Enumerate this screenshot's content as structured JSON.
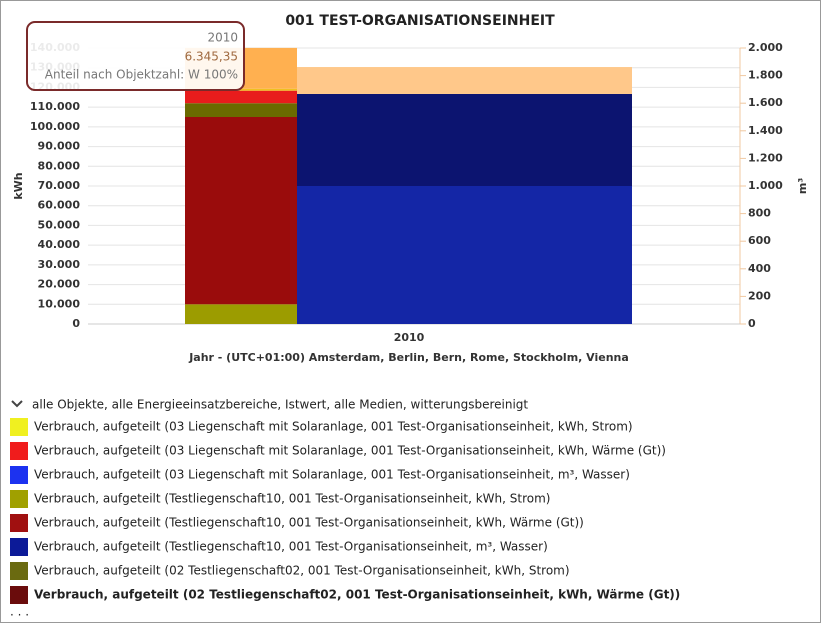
{
  "chart_data": {
    "type": "stacked-bar",
    "title": "001 TEST-ORGANISATIONSEINHEIT",
    "categories": [
      "2010"
    ],
    "x_label": "Jahr - (UTC+01:00) Amsterdam, Berlin, Bern, Rome, Stockholm, Vienna",
    "y_label": "kWh",
    "y2_label": "m³",
    "ylim": [
      0,
      140000
    ],
    "yticks": [
      0,
      {
        "value": 10000,
        "label": "10.000"
      },
      {
        "value": 20000,
        "label": "20.000"
      },
      {
        "value": 30000,
        "label": "30.000"
      },
      {
        "value": 40000,
        "label": "40.000"
      },
      {
        "value": 50000,
        "label": "50.000"
      },
      {
        "value": 60000,
        "label": "60.000"
      },
      {
        "value": 70000,
        "label": "70.000"
      },
      {
        "value": 80000,
        "label": "80.000"
      },
      {
        "value": 90000,
        "label": "90.000"
      },
      {
        "value": 100000,
        "label": "100.000"
      },
      {
        "value": 110000,
        "label": "110.000"
      },
      {
        "value": 120000,
        "label": "120.000"
      },
      {
        "value": 130000,
        "label": "130.000"
      },
      {
        "value": 140000,
        "label": "140.000"
      }
    ],
    "y2lim": [
      0,
      2000
    ],
    "y2ticks": [
      0,
      200,
      400,
      600,
      800,
      {
        "value": 1000,
        "label": "1.000"
      },
      {
        "value": 1200,
        "label": "1.200"
      },
      {
        "value": 1400,
        "label": "1.400"
      },
      {
        "value": 1600,
        "label": "1.600"
      },
      {
        "value": 1800,
        "label": "1.800"
      },
      {
        "value": 2000,
        "label": "2.000"
      }
    ],
    "grid": true,
    "series": [
      {
        "color": "#9c9c00",
        "values": [
          10000
        ]
      },
      {
        "color": "#9a0c0c",
        "values": [
          95000
        ]
      },
      {
        "color": "#6a6a00",
        "values": [
          7000
        ]
      },
      {
        "color": "#e81c1c",
        "values": [
          6345.35
        ]
      },
      {
        "color": "#f0c020",
        "values": [
          1000
        ]
      },
      {
        "color": "#ffb050",
        "values": [
          20700
        ]
      },
      {
        "color": "#1426a6",
        "values": [
          1000
        ],
        "axis": "y2"
      },
      {
        "color": "#0c1470",
        "values": [
          667
        ],
        "axis": "y2"
      },
      {
        "color": "#ffc88a",
        "values": [
          195
        ],
        "axis": "y2"
      }
    ],
    "tooltip": {
      "title": "2010",
      "value": "6.345,35",
      "text": "Anteil nach Objektzahl: W 100%"
    },
    "legend": {
      "title": "alle Objekte, alle Energieeinsatzbereiche, Istwert, alle Medien, witterungsbereinigt",
      "items": [
        {
          "name": "Verbrauch, aufgeteilt (03 Liegenschaft mit Solaranlage, 001 Test-Organisationseinheit, kWh, Strom)",
          "color": "#f0f020"
        },
        {
          "name": "Verbrauch, aufgeteilt (03 Liegenschaft mit Solaranlage, 001 Test-Organisationseinheit, kWh, Wärme (Gt))",
          "color": "#f01c1c"
        },
        {
          "name": "Verbrauch, aufgeteilt (03 Liegenschaft mit Solaranlage, 001 Test-Organisationseinheit, m³, Wasser)",
          "color": "#1c32f0"
        },
        {
          "name": "Verbrauch, aufgeteilt (Testliegenschaft10, 001 Test-Organisationseinheit, kWh, Strom)",
          "color": "#a0a000"
        },
        {
          "name": "Verbrauch, aufgeteilt (Testliegenschaft10, 001 Test-Organisationseinheit, kWh, Wärme (Gt))",
          "color": "#a01010"
        },
        {
          "name": "Verbrauch, aufgeteilt (Testliegenschaft10, 001 Test-Organisationseinheit, m³, Wasser)",
          "color": "#0c1a98"
        },
        {
          "name": "Verbrauch, aufgeteilt (02 Testliegenschaft02, 001 Test-Organisationseinheit, kWh, Strom)",
          "color": "#6a6a10"
        },
        {
          "name": "Verbrauch, aufgeteilt (02 Testliegenschaft02, 001 Test-Organisationseinheit, kWh, Wärme (Gt))",
          "color": "#6a0c0c"
        }
      ],
      "more": ". . ."
    }
  }
}
